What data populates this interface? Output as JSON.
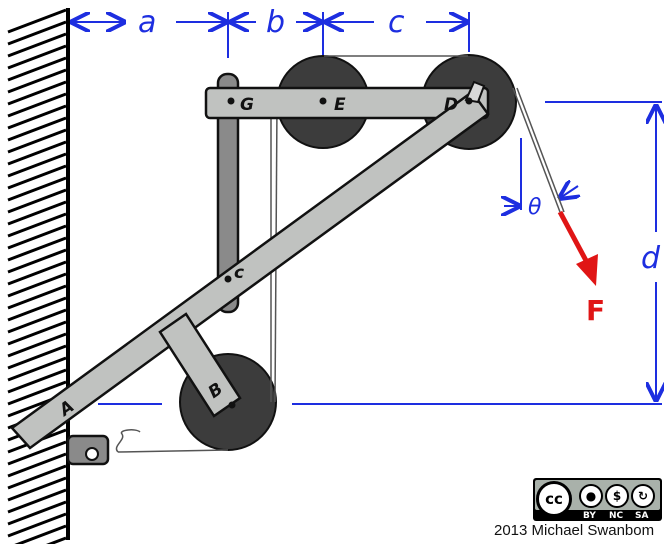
{
  "dimensions": {
    "a": "a",
    "b": "b",
    "c": "c",
    "d": "d"
  },
  "points": {
    "A": "A",
    "B": "B",
    "C": "c",
    "D": "D",
    "E": "E",
    "G": "G"
  },
  "angle_label": "θ",
  "force_label": "F",
  "colors": {
    "dimension": "#1d2ee0",
    "force": "#e01515",
    "bar": "#c0c2c0",
    "pulley": "#3c3c3c",
    "post": "#8a8a8a"
  },
  "license": {
    "cc": "cc",
    "by": "BY",
    "nc": "NC",
    "sa": "SA"
  },
  "credit": "2013 Michael Swanbom"
}
